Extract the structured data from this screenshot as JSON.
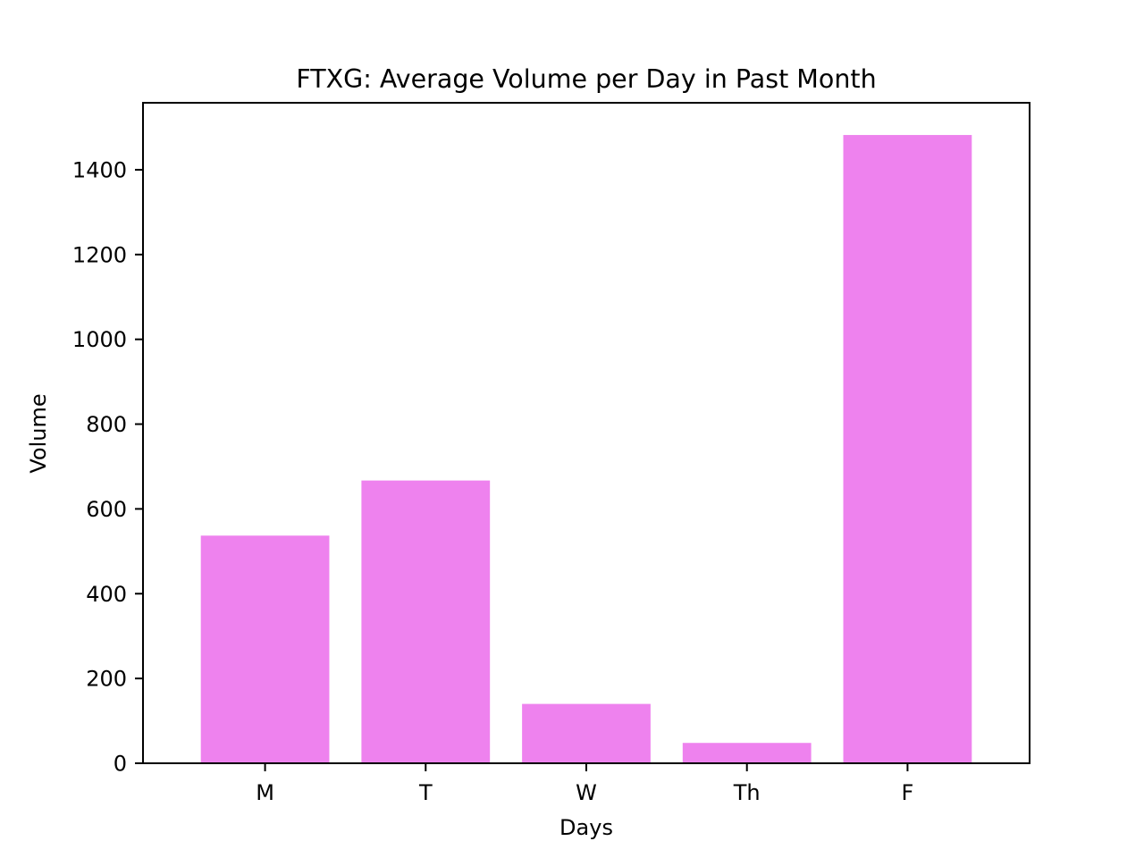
{
  "chart_data": {
    "type": "bar",
    "title": "FTXG: Average Volume per Day in Past Month",
    "xlabel": "Days",
    "ylabel": "Volume",
    "categories": [
      "M",
      "T",
      "W",
      "Th",
      "F"
    ],
    "values": [
      537,
      667,
      140,
      48,
      1482
    ],
    "ylim": [
      0,
      1558
    ],
    "yticks": [
      0,
      200,
      400,
      600,
      800,
      1000,
      1200,
      1400
    ],
    "bar_color": "#ee82ee",
    "grid": false,
    "legend": "none"
  }
}
